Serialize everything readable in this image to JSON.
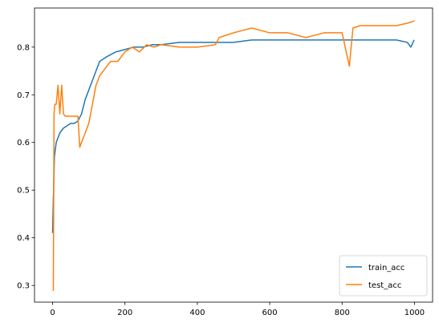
{
  "chart_data": {
    "type": "line",
    "title": "",
    "xlabel": "",
    "ylabel": "",
    "xlim": [
      -50,
      1050
    ],
    "ylim": [
      0.265,
      0.882
    ],
    "xticks": [
      0,
      200,
      400,
      600,
      800,
      1000
    ],
    "yticks": [
      0.3,
      0.4,
      0.5,
      0.6,
      0.7,
      0.8
    ],
    "xtick_labels": [
      "0",
      "200",
      "400",
      "600",
      "800",
      "1000"
    ],
    "ytick_labels": [
      "0.3",
      "0.4",
      "0.5",
      "0.6",
      "0.7",
      "0.8"
    ],
    "grid": false,
    "legend": "lower right",
    "series": [
      {
        "name": "train_acc",
        "color": "#1f77b4",
        "x": [
          0,
          2,
          5,
          10,
          20,
          30,
          40,
          50,
          60,
          70,
          80,
          90,
          100,
          110,
          120,
          130,
          140,
          150,
          175,
          200,
          225,
          250,
          275,
          300,
          350,
          400,
          450,
          500,
          550,
          600,
          650,
          700,
          750,
          800,
          850,
          900,
          950,
          980,
          990,
          999
        ],
        "y": [
          0.41,
          0.48,
          0.57,
          0.6,
          0.62,
          0.63,
          0.635,
          0.64,
          0.64,
          0.645,
          0.66,
          0.69,
          0.71,
          0.73,
          0.75,
          0.77,
          0.775,
          0.78,
          0.79,
          0.795,
          0.8,
          0.8,
          0.805,
          0.805,
          0.81,
          0.81,
          0.81,
          0.81,
          0.815,
          0.815,
          0.815,
          0.815,
          0.815,
          0.815,
          0.815,
          0.815,
          0.815,
          0.81,
          0.8,
          0.815
        ]
      },
      {
        "name": "test_acc",
        "color": "#ff7f0e",
        "x": [
          0,
          2,
          4,
          6,
          10,
          15,
          20,
          25,
          30,
          35,
          40,
          45,
          50,
          60,
          70,
          75,
          80,
          85,
          90,
          100,
          110,
          120,
          130,
          140,
          150,
          160,
          180,
          200,
          220,
          240,
          260,
          280,
          300,
          350,
          400,
          450,
          460,
          500,
          550,
          600,
          650,
          700,
          750,
          800,
          820,
          830,
          850,
          900,
          950,
          980,
          1000
        ],
        "y": [
          0.29,
          0.29,
          0.66,
          0.68,
          0.68,
          0.72,
          0.66,
          0.72,
          0.66,
          0.655,
          0.655,
          0.655,
          0.655,
          0.655,
          0.655,
          0.59,
          0.6,
          0.61,
          0.62,
          0.64,
          0.68,
          0.72,
          0.74,
          0.75,
          0.76,
          0.77,
          0.77,
          0.79,
          0.8,
          0.79,
          0.805,
          0.8,
          0.805,
          0.8,
          0.8,
          0.805,
          0.82,
          0.83,
          0.84,
          0.83,
          0.83,
          0.82,
          0.83,
          0.83,
          0.76,
          0.84,
          0.845,
          0.845,
          0.845,
          0.85,
          0.855
        ]
      }
    ]
  }
}
